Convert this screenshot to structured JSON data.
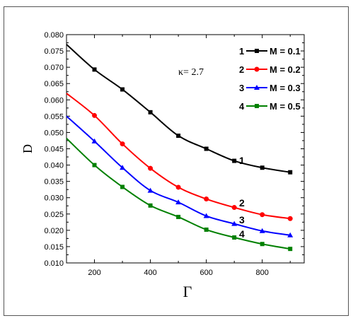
{
  "chart_data": {
    "type": "line",
    "xlabel": "Γ",
    "ylabel": "D",
    "annotation": "κ= 2.7",
    "xlim": [
      100,
      950
    ],
    "ylim": [
      0.01,
      0.08
    ],
    "xticks": [
      "200",
      "400",
      "600",
      "800"
    ],
    "yticks": [
      "0.010",
      "0.015",
      "0.020",
      "0.025",
      "0.030",
      "0.035",
      "0.040",
      "0.045",
      "0.050",
      "0.055",
      "0.060",
      "0.065",
      "0.070",
      "0.075",
      "0.080"
    ],
    "x": [
      100,
      200,
      300,
      400,
      500,
      600,
      700,
      800,
      900
    ],
    "series": [
      {
        "name": "M = 0.1",
        "index": "1",
        "color": "#000000",
        "marker": "square",
        "values": [
          0.077,
          0.0693,
          0.0632,
          0.0562,
          0.049,
          0.045,
          0.0413,
          0.0392,
          0.0378
        ]
      },
      {
        "name": "M = 0.2",
        "index": "2",
        "color": "#ff0000",
        "marker": "circle",
        "values": [
          0.062,
          0.0552,
          0.0465,
          0.039,
          0.0332,
          0.0296,
          0.027,
          0.0248,
          0.0236
        ]
      },
      {
        "name": "M = 0.3",
        "index": "3",
        "color": "#0000ff",
        "marker": "triangle",
        "values": [
          0.055,
          0.0473,
          0.0392,
          0.0322,
          0.0286,
          0.0244,
          0.022,
          0.0198,
          0.0185
        ]
      },
      {
        "name": "M = 0.5",
        "index": "4",
        "color": "#008000",
        "marker": "square",
        "values": [
          0.0482,
          0.04,
          0.0333,
          0.0276,
          0.0241,
          0.0202,
          0.0178,
          0.0158,
          0.0143
        ]
      }
    ],
    "legend_position": "top-right",
    "grid": false
  }
}
